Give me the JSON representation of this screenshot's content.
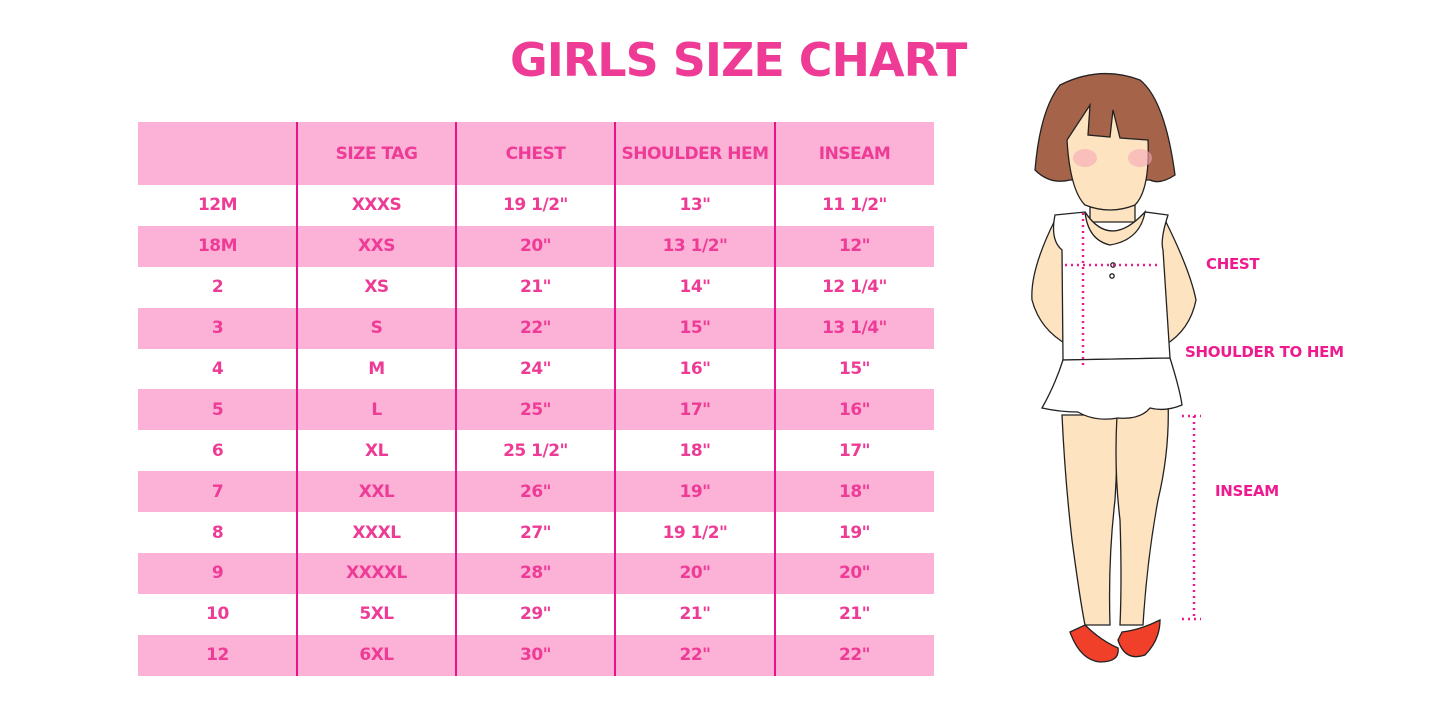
{
  "title": "GIRLS SIZE CHART",
  "colors": {
    "accent": "#ee3c96",
    "row_pink": "#fcb1d7",
    "divider": "#e8138a"
  },
  "table": {
    "headers": [
      "",
      "SIZE TAG",
      "CHEST",
      "SHOULDER HEM",
      "INSEAM"
    ],
    "rows": [
      [
        "12M",
        "XXXS",
        "19 1/2\"",
        "13\"",
        "11 1/2\""
      ],
      [
        "18M",
        "XXS",
        "20\"",
        "13 1/2\"",
        "12\""
      ],
      [
        "2",
        "XS",
        "21\"",
        "14\"",
        "12 1/4\""
      ],
      [
        "3",
        "S",
        "22\"",
        "15\"",
        "13 1/4\""
      ],
      [
        "4",
        "M",
        "24\"",
        "16\"",
        "15\""
      ],
      [
        "5",
        "L",
        "25\"",
        "17\"",
        "16\""
      ],
      [
        "6",
        "XL",
        "25 1/2\"",
        "18\"",
        "17\""
      ],
      [
        "7",
        "XXL",
        "26\"",
        "19\"",
        "18\""
      ],
      [
        "8",
        "XXXL",
        "27\"",
        "19 1/2\"",
        "19\""
      ],
      [
        "9",
        "XXXXL",
        "28\"",
        "20\"",
        "20\""
      ],
      [
        "10",
        "5XL",
        "29\"",
        "21\"",
        "21\""
      ],
      [
        "12",
        "6XL",
        "30\"",
        "22\"",
        "22\""
      ]
    ]
  },
  "illustration": {
    "chest_label": "CHEST",
    "shoulder_label": "SHOULDER TO HEM",
    "inseam_label": "INSEAM"
  }
}
